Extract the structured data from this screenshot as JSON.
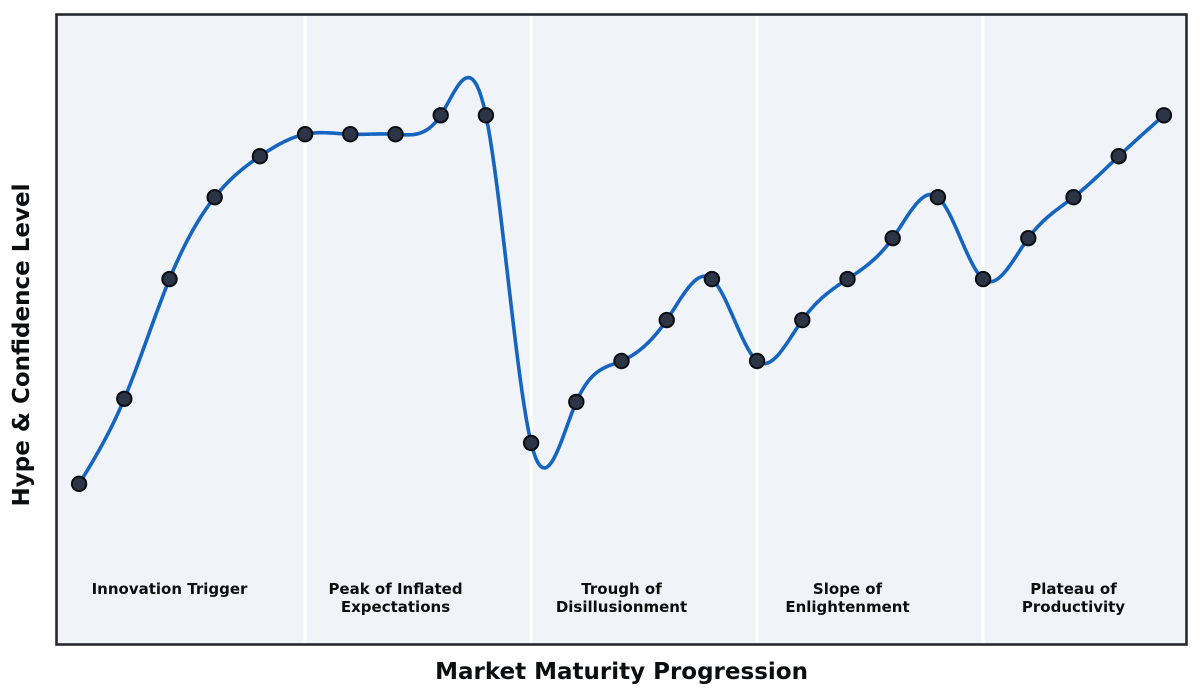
{
  "chart_data": {
    "type": "line",
    "title": "",
    "xlabel": "Market Maturity Progression",
    "ylabel": "Hype & Confidence Level",
    "x": [
      1,
      2,
      3,
      4,
      5,
      6,
      7,
      8,
      9,
      10,
      11,
      12,
      13,
      14,
      15,
      16,
      17,
      18,
      19,
      20,
      21,
      22,
      23,
      24,
      25
    ],
    "values": [
      25.5,
      39,
      58,
      71,
      77.5,
      81,
      81,
      81,
      84,
      84,
      32,
      38.5,
      45,
      51.5,
      58,
      45,
      51.5,
      58,
      64.5,
      71,
      58,
      64.5,
      71,
      77.5,
      84
    ],
    "xlim": [
      0.5,
      25.5
    ],
    "ylim": [
      0,
      100
    ],
    "grid": false,
    "smoothing": "natural-cubic-spline",
    "legend": "none",
    "ticks": "none",
    "colors": {
      "line": "#1565c0",
      "marker_fill": "#2b3545",
      "marker_edge": "#0a0d12",
      "plot_background": "#f0f4f8",
      "phase_separator": "#ffffff",
      "frame": "#26292e",
      "text": "#0d0e10",
      "figure_background": "#ffffff"
    },
    "phase_boundaries_x": [
      6,
      11,
      16,
      21
    ],
    "phases": [
      {
        "label": "Innovation Trigger",
        "lines": [
          "Innovation Trigger"
        ],
        "label_x": 3
      },
      {
        "label": "Peak of Inflated Expectations",
        "lines": [
          "Peak of Inflated",
          "Expectations"
        ],
        "label_x": 8
      },
      {
        "label": "Trough of Disillusionment",
        "lines": [
          "Trough of",
          "Disillusionment"
        ],
        "label_x": 13
      },
      {
        "label": "Slope of Enlightenment",
        "lines": [
          "Slope of",
          "Enlightenment"
        ],
        "label_x": 18
      },
      {
        "label": "Plateau of Productivity",
        "lines": [
          "Plateau of",
          "Productivity"
        ],
        "label_x": 23
      }
    ]
  }
}
